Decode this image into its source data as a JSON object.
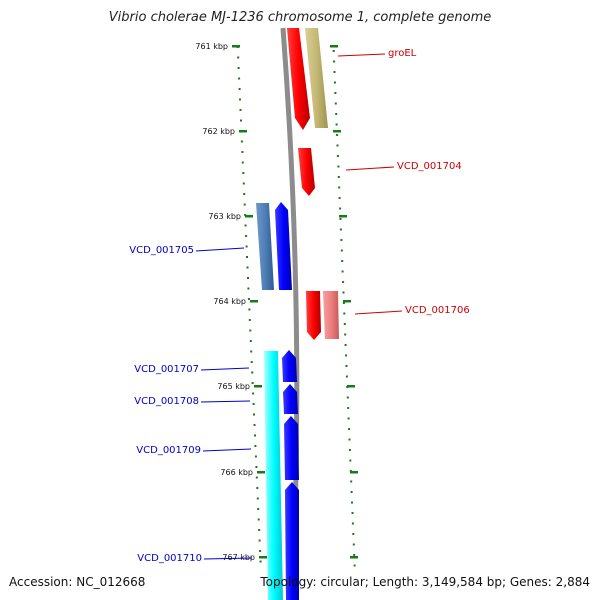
{
  "title": "Vibrio cholerae MJ-1236 chromosome 1, complete genome",
  "accession": "Accession: NC_012668",
  "summary": "Topology: circular; Length: 3,149,584 bp; Genes: 2,884",
  "colors": {
    "backbone": "#8c8c8c",
    "tick": "#1a7a1a",
    "forward_label": "#cc0000",
    "reverse_label": "#0000cc"
  },
  "ticks": [
    "761 kbp",
    "762 kbp",
    "763 kbp",
    "764 kbp",
    "765 kbp",
    "766 kbp",
    "767 kbp"
  ],
  "genes": [
    {
      "name": "groEL",
      "strand": "forward",
      "color": "#ff0000"
    },
    {
      "name": "VCD_001704",
      "strand": "forward",
      "color": "#ff0000"
    },
    {
      "name": "VCD_001705",
      "strand": "reverse",
      "color": "#0000ff"
    },
    {
      "name": "VCD_001706",
      "strand": "forward",
      "color": "#ff0000"
    },
    {
      "name": "VCD_001707",
      "strand": "reverse",
      "color": "#0000ff"
    },
    {
      "name": "VCD_001708",
      "strand": "reverse",
      "color": "#0000ff"
    },
    {
      "name": "VCD_001709",
      "strand": "reverse",
      "color": "#0000ff"
    },
    {
      "name": "VCD_001710",
      "strand": "reverse",
      "color": "#0000ff"
    }
  ]
}
